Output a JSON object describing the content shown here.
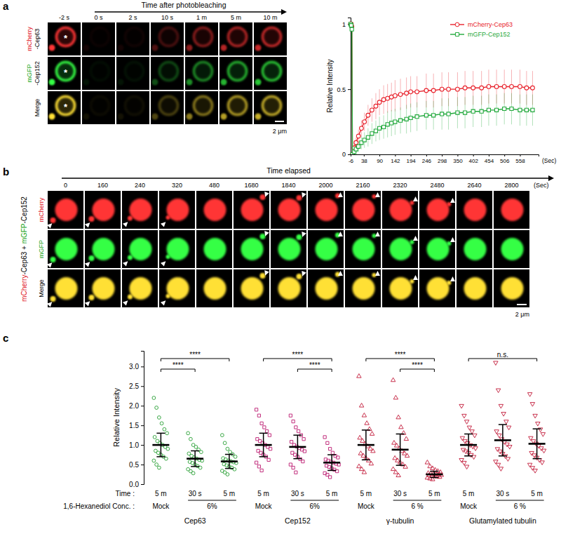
{
  "figure": {
    "panel_labels": [
      "a",
      "b",
      "c"
    ],
    "panel_a": {
      "header": "Time after photobleaching",
      "times": [
        "-2 s",
        "0 s",
        "2 s",
        "10 s",
        "1 m",
        "5 m",
        "10 m"
      ],
      "rows": [
        {
          "tag": "mCherry",
          "protein": "-Cep63",
          "color": "#e0141e"
        },
        {
          "tag": "mGFP",
          "protein": "-Cep152",
          "color": "#16a316"
        },
        {
          "tag": "Merge",
          "color": "#000000"
        }
      ],
      "bleach_mark": "*",
      "scale_bar": "2 μm"
    },
    "panel_b": {
      "header": "Time elapsed",
      "times": [
        0,
        160,
        240,
        320,
        480,
        1680,
        1840,
        2000,
        2160,
        2320,
        2480,
        2640,
        2800
      ],
      "unit": "(Sec)",
      "rows": [
        "mCherry",
        "mGFP",
        "Merge"
      ],
      "row_colors": [
        "#e0141e",
        "#16a316",
        "#000000"
      ],
      "side_label": [
        {
          "text": "mCherry",
          "color": "#e0141e"
        },
        {
          "text": "-Cep63 + ",
          "color": "#000000"
        },
        {
          "text": "mGFP",
          "color": "#16a316"
        },
        {
          "text": "-Cep152",
          "color": "#000000"
        }
      ],
      "scale_bar": "2 μm"
    }
  },
  "chart_data": [
    {
      "type": "line",
      "x": [
        -6,
        -4,
        -2,
        0,
        6,
        12,
        20,
        30,
        40,
        52,
        65,
        78,
        90,
        104,
        117,
        130,
        142,
        160,
        180,
        194,
        215,
        246,
        270,
        298,
        320,
        350,
        375,
        402,
        430,
        454,
        480,
        506,
        530,
        558,
        580,
        600
      ],
      "xlim": [
        -6,
        620
      ],
      "xticks": [
        -6,
        38,
        90,
        142,
        194,
        246,
        298,
        350,
        402,
        454,
        506,
        558
      ],
      "ylim": [
        0,
        1.05
      ],
      "yticks": [
        0,
        0.5,
        1
      ],
      "x_label": "(Sec)",
      "y_label": "Relative Intensity",
      "legend": "upper right",
      "series": [
        {
          "name": "mCherry-Cep63",
          "color": "#e8212b",
          "marker": "circle",
          "values": [
            1,
            1,
            0.98,
            0,
            0.05,
            0.09,
            0.14,
            0.2,
            0.25,
            0.3,
            0.34,
            0.37,
            0.4,
            0.42,
            0.43,
            0.44,
            0.45,
            0.46,
            0.47,
            0.48,
            0.48,
            0.49,
            0.49,
            0.5,
            0.5,
            0.5,
            0.51,
            0.51,
            0.51,
            0.52,
            0.52,
            0.52,
            0.52,
            0.52,
            0.51,
            0.51
          ],
          "error": [
            0.02,
            0.02,
            0.03,
            0.01,
            0.03,
            0.04,
            0.05,
            0.06,
            0.07,
            0.08,
            0.09,
            0.1,
            0.1,
            0.11,
            0.11,
            0.11,
            0.12,
            0.12,
            0.12,
            0.12,
            0.12,
            0.13,
            0.13,
            0.13,
            0.13,
            0.13,
            0.13,
            0.13,
            0.13,
            0.13,
            0.13,
            0.13,
            0.13,
            0.13,
            0.13,
            0.13
          ]
        },
        {
          "name": "mGFP-Cep152",
          "color": "#1fa83a",
          "marker": "square",
          "values": [
            1,
            0.99,
            0.96,
            0,
            0.02,
            0.04,
            0.06,
            0.09,
            0.11,
            0.13,
            0.16,
            0.18,
            0.2,
            0.21,
            0.23,
            0.24,
            0.25,
            0.26,
            0.27,
            0.28,
            0.29,
            0.3,
            0.3,
            0.31,
            0.31,
            0.32,
            0.32,
            0.33,
            0.33,
            0.34,
            0.34,
            0.35,
            0.35,
            0.34,
            0.34,
            0.34
          ],
          "error": [
            0.02,
            0.02,
            0.03,
            0.01,
            0.02,
            0.03,
            0.04,
            0.05,
            0.06,
            0.07,
            0.08,
            0.08,
            0.09,
            0.09,
            0.1,
            0.1,
            0.1,
            0.1,
            0.11,
            0.11,
            0.11,
            0.11,
            0.11,
            0.12,
            0.12,
            0.12,
            0.12,
            0.12,
            0.12,
            0.12,
            0.12,
            0.12,
            0.12,
            0.12,
            0.12,
            0.12
          ]
        }
      ]
    },
    {
      "type": "scatter",
      "y_label": "Relative Intensity",
      "ylim": [
        0,
        3.4
      ],
      "yticks": [
        {
          "value": 0,
          "label": "0.0"
        },
        {
          "value": 0.5,
          "label": "0.5"
        },
        {
          "value": 1,
          "label": "1.0"
        },
        {
          "value": 1.5,
          "label": "1.5"
        },
        {
          "value": 2,
          "label": "2.0"
        },
        {
          "value": 2.5,
          "label": "2.5"
        },
        {
          "value": 3,
          "label": "3.0"
        }
      ],
      "row_labels": {
        "time": "Time :",
        "conc": "1,6-Hexanediol Conc. :"
      },
      "groups": [
        {
          "name": "Cep63",
          "color": "#3aa845",
          "marker": "circle",
          "conc_labels": [
            "Mock",
            "6%"
          ],
          "conditions": [
            {
              "time": "5 m",
              "mean": 1.0,
              "sd": 0.3,
              "values": [
                2.2,
                1.95,
                1.7,
                1.55,
                1.4,
                1.3,
                1.2,
                1.1,
                1.05,
                1.0,
                0.95,
                0.9,
                0.85,
                0.8,
                0.75,
                0.7,
                0.65,
                0.6,
                0.5,
                0.42
              ]
            },
            {
              "time": "30 s",
              "mean": 0.65,
              "sd": 0.2,
              "values": [
                1.3,
                1.15,
                1.0,
                0.95,
                0.88,
                0.82,
                0.78,
                0.72,
                0.68,
                0.65,
                0.62,
                0.6,
                0.57,
                0.54,
                0.5,
                0.46,
                0.42,
                0.38,
                0.33,
                0.28
              ]
            },
            {
              "time": "5 m",
              "mean": 0.58,
              "sd": 0.18,
              "values": [
                1.25,
                1.05,
                0.9,
                0.82,
                0.76,
                0.7,
                0.66,
                0.63,
                0.6,
                0.58,
                0.56,
                0.54,
                0.51,
                0.48,
                0.45,
                0.42,
                0.38,
                0.34,
                0.3,
                0.25
              ]
            }
          ],
          "significance": [
            {
              "from": 0,
              "to": 1,
              "label": "****"
            },
            {
              "from": 0,
              "to": 2,
              "label": "****"
            }
          ]
        },
        {
          "name": "Cep152",
          "color": "#c2307e",
          "marker": "square",
          "conc_labels": [
            "Mock",
            "6%"
          ],
          "conditions": [
            {
              "time": "5 m",
              "mean": 1.0,
              "sd": 0.3,
              "values": [
                1.9,
                1.75,
                1.55,
                1.45,
                1.35,
                1.25,
                1.15,
                1.1,
                1.05,
                1.0,
                0.95,
                0.9,
                0.85,
                0.8,
                0.75,
                0.7,
                0.62,
                0.55,
                0.45,
                0.35
              ]
            },
            {
              "time": "30 s",
              "mean": 0.95,
              "sd": 0.3,
              "values": [
                1.75,
                1.6,
                1.45,
                1.35,
                1.25,
                1.15,
                1.08,
                1.0,
                0.96,
                0.92,
                0.88,
                0.84,
                0.8,
                0.75,
                0.7,
                0.64,
                0.58,
                0.5,
                0.42,
                0.3
              ]
            },
            {
              "time": "5 m",
              "mean": 0.55,
              "sd": 0.2,
              "values": [
                1.2,
                1.05,
                0.9,
                0.8,
                0.72,
                0.68,
                0.63,
                0.6,
                0.57,
                0.55,
                0.52,
                0.5,
                0.47,
                0.44,
                0.4,
                0.37,
                0.33,
                0.28,
                0.24,
                0.18
              ]
            }
          ],
          "significance": [
            {
              "from": 0,
              "to": 2,
              "label": "****"
            },
            {
              "from": 1,
              "to": 2,
              "label": "****"
            }
          ]
        },
        {
          "name": "γ-tubulin",
          "color": "#c8304c",
          "marker": "triangle-up",
          "conc_labels": [
            "Mock",
            "6 %"
          ],
          "conditions": [
            {
              "time": "5 m",
              "mean": 1.0,
              "sd": 0.38,
              "values": [
                2.75,
                2.0,
                1.75,
                1.55,
                1.4,
                1.28,
                1.18,
                1.1,
                1.02,
                0.96,
                0.9,
                0.84,
                0.78,
                0.72,
                0.66,
                0.6,
                0.52,
                0.45,
                0.38,
                0.3
              ]
            },
            {
              "time": "30 s",
              "mean": 0.88,
              "sd": 0.4,
              "values": [
                2.65,
                2.2,
                1.7,
                1.45,
                1.3,
                1.15,
                1.05,
                0.98,
                0.9,
                0.84,
                0.78,
                0.72,
                0.66,
                0.6,
                0.55,
                0.5,
                0.44,
                0.38,
                0.3,
                0.22
              ]
            },
            {
              "time": "5 m",
              "mean": 0.25,
              "sd": 0.08,
              "values": [
                0.55,
                0.45,
                0.4,
                0.36,
                0.33,
                0.3,
                0.28,
                0.27,
                0.26,
                0.25,
                0.24,
                0.23,
                0.22,
                0.21,
                0.2,
                0.19,
                0.18,
                0.16,
                0.14,
                0.12
              ]
            }
          ],
          "significance": [
            {
              "from": 0,
              "to": 2,
              "label": "****"
            },
            {
              "from": 1,
              "to": 2,
              "label": "****"
            }
          ]
        },
        {
          "name": "Glutamylated tubulin",
          "color": "#c8304c",
          "marker": "triangle-down",
          "conc_labels": [
            "Mock",
            "6 %"
          ],
          "conditions": [
            {
              "time": "5 m",
              "mean": 1.0,
              "sd": 0.28,
              "values": [
                2.0,
                1.75,
                1.6,
                1.45,
                1.35,
                1.25,
                1.18,
                1.1,
                1.05,
                1.0,
                0.96,
                0.92,
                0.88,
                0.84,
                0.8,
                0.75,
                0.7,
                0.62,
                0.55,
                0.45
              ]
            },
            {
              "time": "30 s",
              "mean": 1.12,
              "sd": 0.4,
              "values": [
                3.1,
                2.4,
                2.0,
                1.8,
                1.6,
                1.45,
                1.35,
                1.25,
                1.15,
                1.08,
                1.02,
                0.96,
                0.9,
                0.84,
                0.78,
                0.72,
                0.65,
                0.58,
                0.5,
                0.4
              ]
            },
            {
              "time": "5 m",
              "mean": 1.03,
              "sd": 0.38,
              "values": [
                2.3,
                2.05,
                1.75,
                1.55,
                1.4,
                1.28,
                1.18,
                1.1,
                1.04,
                0.98,
                0.92,
                0.86,
                0.8,
                0.74,
                0.68,
                0.62,
                0.56,
                0.5,
                0.42,
                0.35
              ]
            }
          ],
          "significance": [
            {
              "from": 0,
              "to": 2,
              "label": "n.s."
            }
          ]
        }
      ]
    }
  ]
}
